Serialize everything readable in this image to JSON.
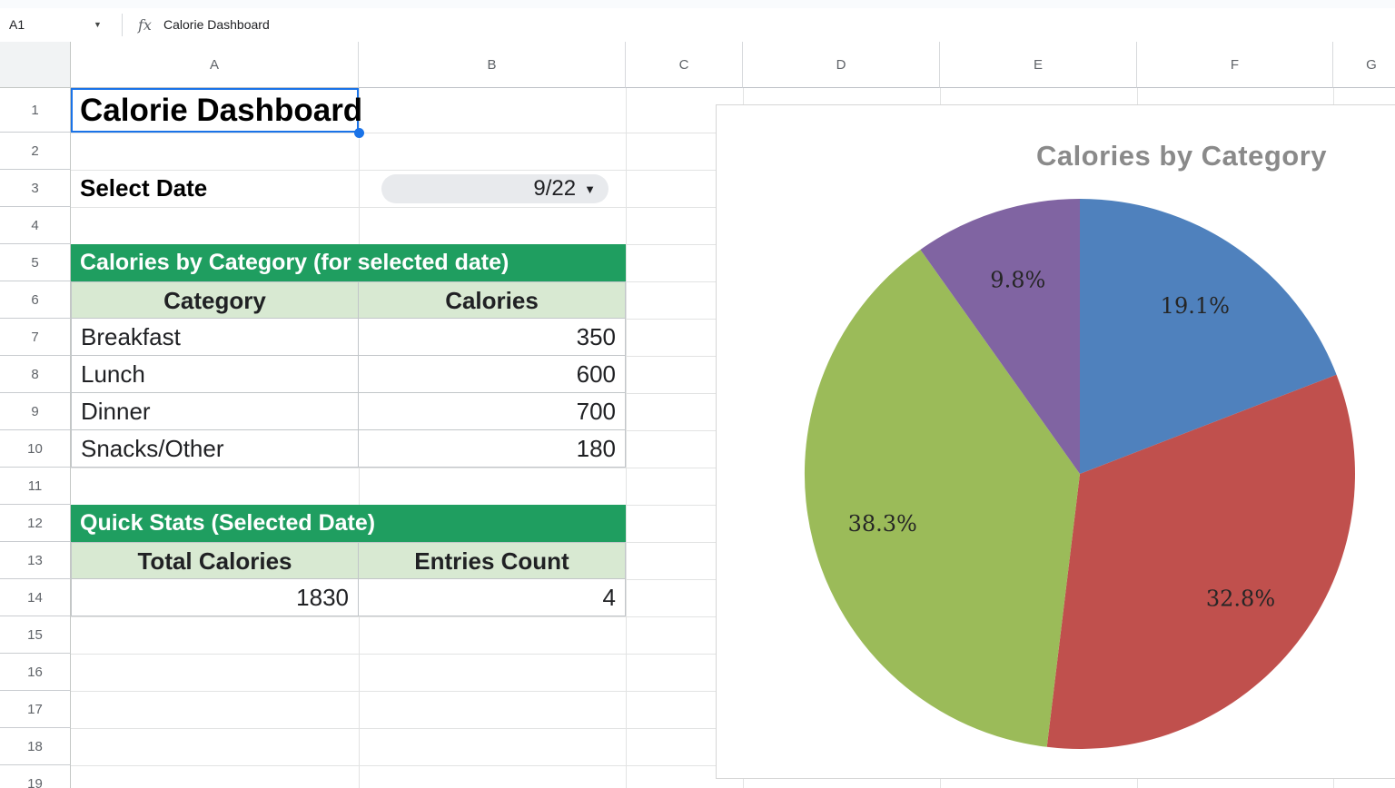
{
  "app": {
    "name_box": "A1",
    "fx_label": "fx",
    "formula": "Calorie Dashboard"
  },
  "icons": {
    "name_box_caret": "▼",
    "dropdown_caret": "▼"
  },
  "grid": {
    "column_letters": [
      "A",
      "B",
      "C",
      "D",
      "E",
      "F",
      "G"
    ],
    "row_numbers": [
      "1",
      "2",
      "3",
      "4",
      "5",
      "6",
      "7",
      "8",
      "9",
      "10",
      "11",
      "12",
      "13",
      "14",
      "15",
      "16",
      "17",
      "18",
      "19"
    ],
    "selected_cell": "A1"
  },
  "sheet": {
    "title_cell": "Calorie Dashboard",
    "select_date_label": "Select Date",
    "date_dropdown_value": "9/22",
    "category_table": {
      "banner": "Calories by Category (for selected date)",
      "headers": [
        "Category",
        "Calories"
      ],
      "rows": [
        [
          "Breakfast",
          "350"
        ],
        [
          "Lunch",
          "600"
        ],
        [
          "Dinner",
          "700"
        ],
        [
          "Snacks/Other",
          "180"
        ]
      ]
    },
    "stats_table": {
      "banner": "Quick Stats (Selected Date)",
      "headers": [
        "Total Calories",
        "Entries Count"
      ],
      "rows": [
        [
          "1830",
          "4"
        ]
      ]
    }
  },
  "chart_data": {
    "type": "pie",
    "title": "Calories by Category",
    "categories": [
      "Breakfast",
      "Lunch",
      "Dinner",
      "Snacks/Other"
    ],
    "values": [
      350,
      600,
      700,
      180
    ],
    "total": 1830,
    "percent_labels": [
      "19.1%",
      "32.8%",
      "38.3%",
      "9.8%"
    ],
    "slice_colors": [
      "#4F81BD",
      "#C0504D",
      "#9BBB59",
      "#8064A2"
    ],
    "start_angle_deg": 0,
    "direction": "clockwise",
    "label_radius_fraction": 0.74,
    "legend_position": "none"
  },
  "colors": {
    "banner_green": "#1f9e60",
    "header_light_green": "#d8e9d2",
    "selection_blue": "#1a73e8",
    "chart_title_gray": "#8a8a8a",
    "label_text": "#262626"
  }
}
